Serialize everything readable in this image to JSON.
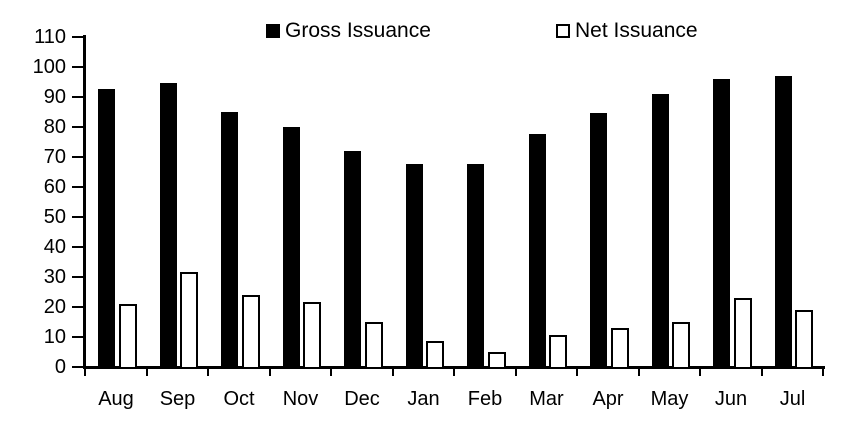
{
  "chart_data": {
    "type": "bar",
    "categories": [
      "Aug",
      "Sep",
      "Oct",
      "Nov",
      "Dec",
      "Jan",
      "Feb",
      "Mar",
      "Apr",
      "May",
      "Jun",
      "Jul"
    ],
    "series": [
      {
        "name": "Gross Issuance",
        "swatch": "filled-black-square",
        "values": [
          92.5,
          94.5,
          85,
          80,
          72,
          67.5,
          67.5,
          77.5,
          84.5,
          91,
          96,
          97
        ]
      },
      {
        "name": "Net Issuance",
        "swatch": "hollow-white-square",
        "values": [
          21,
          31.5,
          24,
          21.5,
          15,
          8.5,
          5,
          10.5,
          13,
          15,
          23,
          19
        ]
      }
    ],
    "title": "",
    "xlabel": "",
    "ylabel": "",
    "ylim": [
      0,
      110
    ],
    "y_tick_step": 10,
    "y_tick_labels": [
      "0",
      "10",
      "20",
      "30",
      "40",
      "50",
      "60",
      "70",
      "80",
      "90",
      "100",
      "110"
    ],
    "grid": false,
    "legend_position": "top"
  },
  "colors": {
    "gross_bar_fill": "#000000",
    "net_bar_fill": "#ffffff",
    "net_bar_outline": "#000000",
    "axis": "#000000",
    "text": "#000000",
    "background": "#ffffff"
  }
}
